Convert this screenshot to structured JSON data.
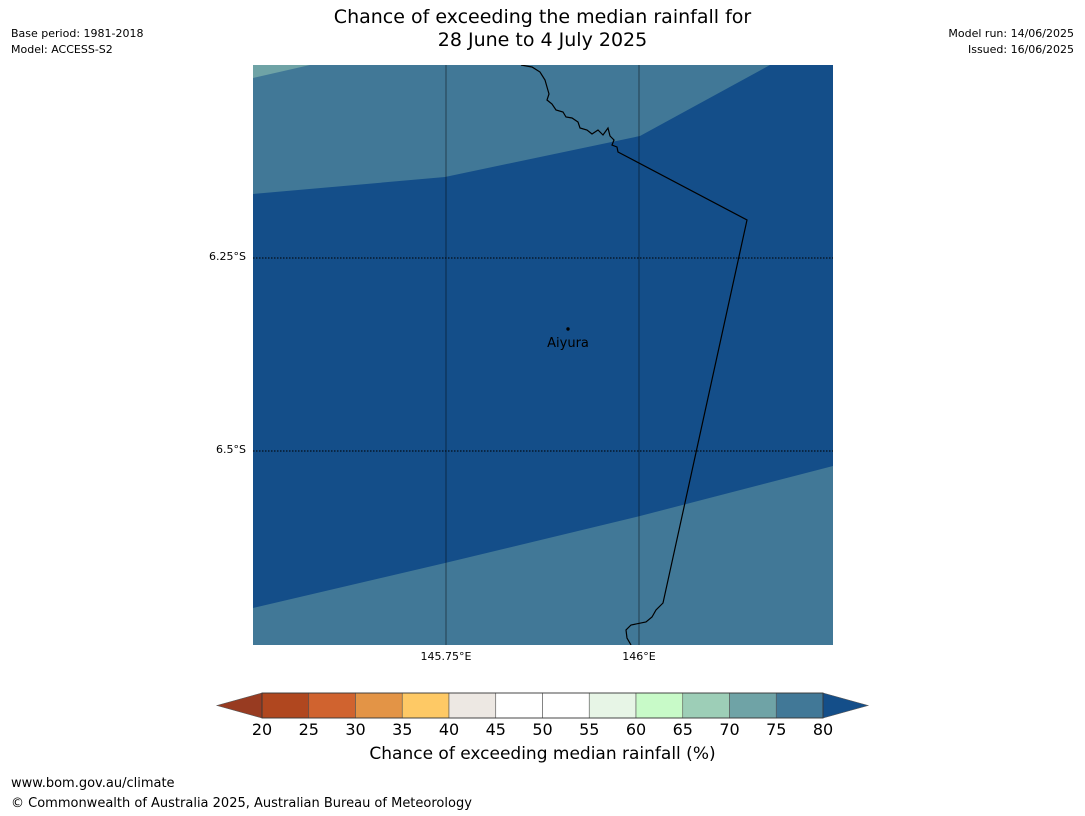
{
  "title": {
    "line1": "Chance of exceeding the median rainfall for",
    "line2": "28 June to 4 July 2025"
  },
  "meta": {
    "base_period": "Base period: 1981-2018",
    "model": "Model: ACCESS-S2",
    "model_run": "Model run: 14/06/2025",
    "issued": "Issued: 16/06/2025"
  },
  "map": {
    "latitude_labels": [
      "6.25°S",
      "6.5°S"
    ],
    "longitude_labels": [
      "145.75°E",
      "146°E"
    ],
    "place": {
      "name": "Aiyura"
    },
    "colors": {
      "band_70_75": "#6fa3a6",
      "band_75_80": "#417897",
      "above_80": "#144e89",
      "border": "#000000",
      "gridline": "#000000"
    }
  },
  "colorbar": {
    "label": "Chance of exceeding median rainfall (%)",
    "ticks": [
      "20",
      "25",
      "30",
      "35",
      "40",
      "45",
      "50",
      "55",
      "60",
      "65",
      "70",
      "75",
      "80"
    ],
    "colors": [
      "#b0471f",
      "#d0632f",
      "#e39446",
      "#fec965",
      "#ede8e3",
      "#ffffff",
      "#ffffff",
      "#e7f5e6",
      "#c8fac8",
      "#9dceb7",
      "#6fa3a6",
      "#417897"
    ],
    "under_color": "#983b21",
    "over_color": "#144e89"
  },
  "footer": {
    "url": "www.bom.gov.au/climate",
    "copyright": "© Commonwealth of Australia 2025, Australian Bureau of Meteorology"
  }
}
